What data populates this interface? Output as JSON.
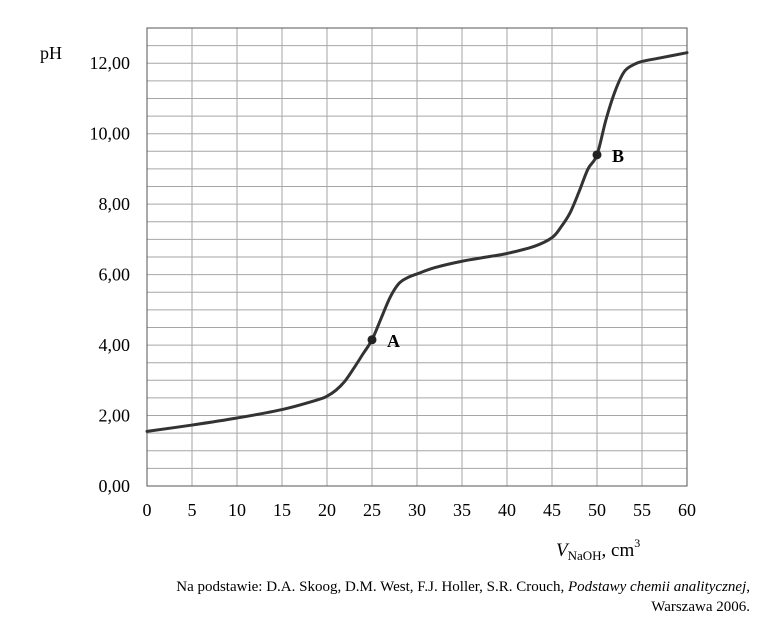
{
  "chart_data": {
    "type": "line",
    "ylabel": "pH",
    "xlabel": {
      "italic": "V",
      "subscript": "NaOH",
      "unit_base": ", cm",
      "unit_exp": "3"
    },
    "xlim": [
      0,
      60
    ],
    "ylim": [
      0,
      13
    ],
    "grid": true,
    "x_ticks": [
      "0",
      "5",
      "10",
      "15",
      "20",
      "25",
      "30",
      "35",
      "40",
      "45",
      "50",
      "55",
      "60"
    ],
    "x_tick_values": [
      0,
      5,
      10,
      15,
      20,
      25,
      30,
      35,
      40,
      45,
      50,
      55,
      60
    ],
    "y_ticks": [
      "0,00",
      "2,00",
      "4,00",
      "6,00",
      "8,00",
      "10,00",
      "12,00"
    ],
    "y_tick_values": [
      0,
      2,
      4,
      6,
      8,
      10,
      12
    ],
    "series": [
      {
        "x": [
          0,
          5,
          10,
          15,
          19,
          20,
          21,
          22,
          23,
          24,
          25,
          26,
          27,
          28,
          29,
          30,
          32,
          35,
          38,
          40,
          43,
          45,
          46,
          47,
          48,
          49,
          50,
          51,
          52,
          53,
          54,
          55,
          57,
          60
        ],
        "y": [
          1.55,
          1.73,
          1.93,
          2.17,
          2.45,
          2.55,
          2.72,
          2.98,
          3.35,
          3.75,
          4.15,
          4.75,
          5.35,
          5.75,
          5.92,
          6.02,
          6.2,
          6.38,
          6.51,
          6.6,
          6.8,
          7.05,
          7.35,
          7.75,
          8.35,
          9.0,
          9.4,
          10.4,
          11.2,
          11.75,
          11.95,
          12.05,
          12.15,
          12.3
        ]
      }
    ],
    "points": [
      {
        "label": "A",
        "x": 25,
        "y": 4.15
      },
      {
        "label": "B",
        "x": 50,
        "y": 9.4
      }
    ]
  },
  "source": {
    "prefix": "Na podstawie: D.A. Skoog, D.M. West, F.J. Holler, S.R. Crouch, ",
    "title": "Podstawy chemii analitycznej",
    "suffix": ",",
    "line2": "Warszawa 2006."
  },
  "colors": {
    "grid": "#a6a6a6",
    "curve": "#333333",
    "axis": "#555555"
  }
}
